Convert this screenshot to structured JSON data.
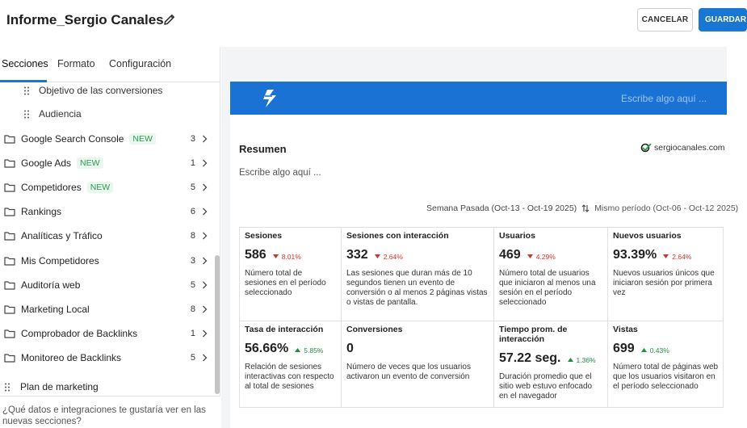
{
  "header": {
    "title": "Informe_Sergio Canales",
    "cancel_label": "CANCELAR",
    "save_label": "GUARDAR"
  },
  "sidebar": {
    "tabs": [
      {
        "label": "Secciones",
        "active": true
      },
      {
        "label": "Formato",
        "active": false
      },
      {
        "label": "Configuración",
        "active": false
      }
    ],
    "sub_items": [
      {
        "label": "Objetivo de las conversiones",
        "icon": "drag-handle-icon"
      },
      {
        "label": "Audiencia",
        "icon": "drag-handle-icon"
      }
    ],
    "folders": [
      {
        "label": "Google Search Console",
        "badge": "NEW",
        "count": "3"
      },
      {
        "label": "Google Ads",
        "badge": "NEW",
        "count": "1"
      },
      {
        "label": "Competidores",
        "badge": "NEW",
        "count": "5"
      },
      {
        "label": "Rankings",
        "badge": "",
        "count": "6"
      },
      {
        "label": "Analíticas y Tráfico",
        "badge": "",
        "count": "8"
      },
      {
        "label": "Mis Competidores",
        "badge": "",
        "count": "3"
      },
      {
        "label": "Auditoría web",
        "badge": "",
        "count": "5"
      },
      {
        "label": "Marketing Local",
        "badge": "",
        "count": "8"
      },
      {
        "label": "Comprobador de Backlinks",
        "badge": "",
        "count": "1"
      },
      {
        "label": "Monitoreo de Backlinks",
        "badge": "",
        "count": "5"
      }
    ],
    "plan_item": "Plan de marketing",
    "footer_text": "¿Qué datos e integraciones te gustaría ver en las nuevas secciones?"
  },
  "report": {
    "header_placeholder": "Escribe algo aquí ...",
    "section_title": "Resumen",
    "brand": "sergiocanales.com",
    "write_placeholder": "Escribe algo aquí ...",
    "period_current": "Semana Pasada (Oct-13 - Oct-19 2025)",
    "period_compare": "Mismo período (Oct-06 - Oct-12 2025)",
    "colors": {
      "accent": "#1a73d4",
      "down": "#d93025",
      "up": "#1e8e3e"
    },
    "metrics": [
      {
        "label": "Sesiones",
        "value": "586",
        "delta": "8.01%",
        "direction": "down",
        "desc": "Número total de sesiones en el período seleccionado"
      },
      {
        "label": "Sesiones con interacción",
        "value": "332",
        "delta": "2.64%",
        "direction": "down",
        "desc": "Las sesiones que duran más de 10 segundos tienen un evento de conversión o al menos 2 páginas vistas o vistas de pantalla."
      },
      {
        "label": "Usuarios",
        "value": "469",
        "delta": "4.29%",
        "direction": "down",
        "desc": "Número total de usuarios que iniciaron al menos una sesión en el período seleccionado"
      },
      {
        "label": "Nuevos usuarios",
        "value": "93.39%",
        "delta": "2.64%",
        "direction": "down",
        "desc": "Nuevos usuarios únicos que iniciaron sesión por primera vez"
      },
      {
        "label": "Tasa de interacción",
        "value": "56.66%",
        "delta": "5.85%",
        "direction": "up",
        "desc": "Relación de sesiones interactivas con respecto al total de sesiones"
      },
      {
        "label": "Conversiones",
        "value": "0",
        "delta": "",
        "direction": "none",
        "desc": "Número de veces que los usuarios activaron un evento de conversión"
      },
      {
        "label": "Tiempo prom. de interacción",
        "value": "57.22 seg.",
        "delta": "1.36%",
        "direction": "up",
        "desc": "Duración promedio que el sitio web estuvo enfocado en el navegador"
      },
      {
        "label": "Vistas",
        "value": "699",
        "delta": "0.43%",
        "direction": "up",
        "desc": "Número total de páginas web que los usuarios visitaron en el período seleccionado"
      }
    ]
  }
}
